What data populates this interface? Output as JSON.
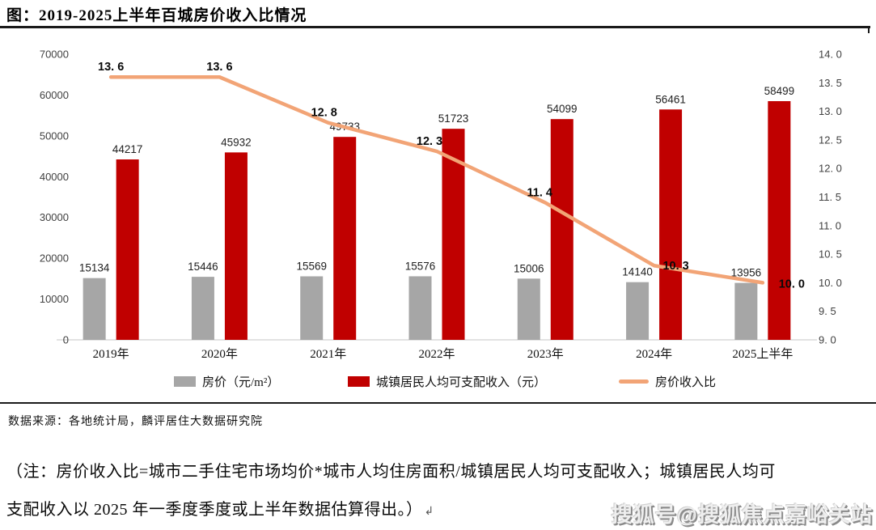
{
  "title": "图：2019-2025上半年百城房价收入比情况",
  "chart_data": {
    "type": "combo-bar-line",
    "categories": [
      "2019年",
      "2020年",
      "2021年",
      "2022年",
      "2023年",
      "2024年",
      "2025上半年"
    ],
    "series": [
      {
        "name": "房价（元/m²）",
        "chart": "bar",
        "axis": "left",
        "color": "#A6A6A6",
        "values": [
          15134,
          15446,
          15569,
          15576,
          15006,
          14140,
          13956
        ]
      },
      {
        "name": "城镇居民人均可支配收入（元）",
        "chart": "bar",
        "axis": "left",
        "color": "#C00000",
        "values": [
          44217,
          45932,
          49733,
          51723,
          54099,
          56461,
          58499
        ]
      },
      {
        "name": "房价收入比",
        "chart": "line",
        "axis": "right",
        "color": "#F2A476",
        "values": [
          13.6,
          13.6,
          12.8,
          12.3,
          11.4,
          10.3,
          10.0
        ],
        "point_labels": [
          "13. 6",
          "13. 6",
          "12. 8",
          "12. 3",
          "11. 4",
          "10. 3",
          "10. 0"
        ]
      }
    ],
    "left_axis": {
      "min": 0,
      "max": 70000,
      "step": 10000,
      "ticks": [
        "70000",
        "60000",
        "50000",
        "40000",
        "30000",
        "20000",
        "10000",
        "0"
      ]
    },
    "right_axis": {
      "min": 9.0,
      "max": 14.0,
      "step": 0.5,
      "ticks": [
        "14. 0",
        "13. 5",
        "13. 0",
        "12. 5",
        "12. 0",
        "11. 5",
        "11. 0",
        "10. 5",
        "10. 0",
        "9. 5",
        "9. 0"
      ]
    },
    "legend_position": "bottom",
    "grid": "off"
  },
  "source_line": "数据来源：各地统计局，麟评居住大数据研究院",
  "note_line1": "（注：房价收入比=城市二手住宅市场均价*城市人均住房面积/城镇居民人均可支配收入；城镇居民人均可",
  "note_line2": "支配收入以 2025 年一季度季度或上半年数据估算得出。）",
  "note_return_mark": "↲",
  "watermark": "搜狐号@搜狐焦点嘉峪关站",
  "colors": {
    "bar_house_price": "#A6A6A6",
    "bar_income": "#C00000",
    "line_ratio": "#F2A476",
    "axis_text": "#3F3F3F",
    "value_label_text": "#1f1f1f",
    "axis_baseline": "#D9D9D9",
    "rule": "#1a1a1a"
  }
}
